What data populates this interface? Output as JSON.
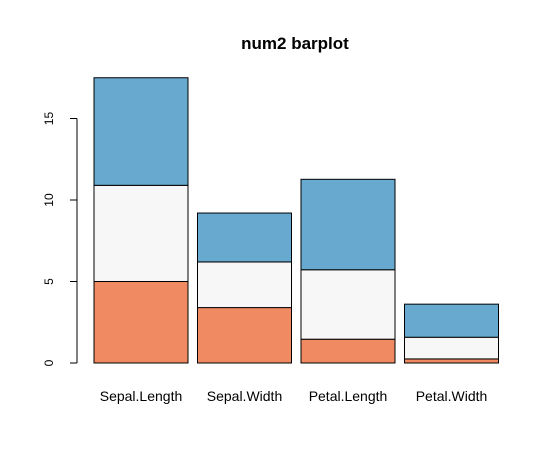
{
  "chart_data": {
    "type": "bar",
    "stacked": true,
    "title": "num2 barplot",
    "xlabel": "",
    "ylabel": "",
    "categories": [
      "Sepal.Length",
      "Sepal.Width",
      "Petal.Length",
      "Petal.Width"
    ],
    "series": [
      {
        "values": [
          5.0,
          3.4,
          1.46,
          0.25
        ],
        "color": "#EF8A62"
      },
      {
        "values": [
          5.9,
          2.8,
          4.26,
          1.33
        ],
        "color": "#F7F7F7"
      },
      {
        "values": [
          6.6,
          3.0,
          5.55,
          2.03
        ],
        "color": "#67A9CF"
      }
    ],
    "yticks": [
      "0",
      "5",
      "10",
      "15"
    ],
    "ylim": [
      0,
      17.5
    ],
    "grid": false,
    "legend": "none"
  }
}
